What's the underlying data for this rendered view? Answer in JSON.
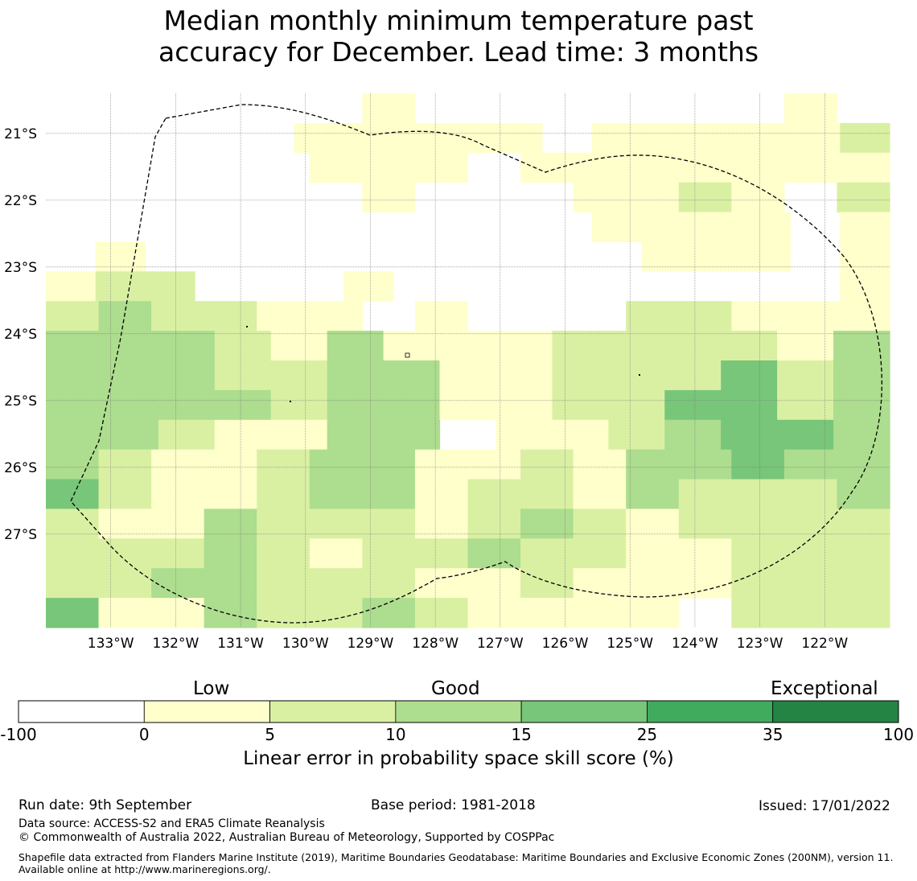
{
  "title_line1": "Median monthly minimum temperature past",
  "title_line2": "accuracy for December. Lead time: 3 months",
  "map": {
    "lon_labels": [
      "133°W",
      "132°W",
      "131°W",
      "130°W",
      "129°W",
      "128°W",
      "127°W",
      "126°W",
      "125°W",
      "124°W",
      "123°W",
      "122°W"
    ],
    "lat_labels": [
      "21°S",
      "22°S",
      "23°S",
      "24°S",
      "25°S",
      "26°S",
      "27°S"
    ],
    "lon_values": [
      -133,
      -132,
      -131,
      -130,
      -129,
      -128,
      -127,
      -126,
      -125,
      -124,
      -123,
      -122
    ],
    "lat_values": [
      -21,
      -22,
      -23,
      -24,
      -25,
      -26,
      -27
    ],
    "grid_lon_range": [
      -134.0,
      -121.0
    ],
    "grid_lat_range": [
      -20.4,
      -28.4
    ],
    "cell_size_lon": 0.833,
    "cell_size_lat": 0.556,
    "cells": [
      "WWWWWWCWWWWWWWCW",
      "WWWWWLLLLLWLLLLLK",
      "WWWWWLLLWLLLLLLL",
      "WWWWWWLWWWLLKLWK",
      "WWWWWWWWWWWLLLLWL",
      "WLWWWWWWWWWWLLLWL",
      "LKKWWWLWWWWWWWWWL",
      "KMKKLLWLWWWKKLLL",
      "MMMKLMLLLKKKKLM",
      "MMMKKMMLLKKKNKM",
      "MMMMKMMLLKKNNKM",
      "MMKLLMMWLLKMNNM",
      "MKLLKMMLLKLMMNMM",
      "NKLLKMMLKKLMKKKM",
      "KLLMKKKLKMKLKKKK",
      "KKKMKLKKMKKLLKKK",
      "KKMMKKKLLKLLLKKK",
      "NLLMKKMKLLLLWKKK"
    ]
  },
  "legend": {
    "categories": [
      "Low",
      "Good",
      "Exceptional"
    ],
    "ticks": [
      "-100",
      "0",
      "5",
      "10",
      "15",
      "25",
      "35",
      "100"
    ],
    "colors": [
      "#ffffff",
      "#ffffcc",
      "#d9f0a3",
      "#addd8e",
      "#78c679",
      "#41ab5d",
      "#238443"
    ],
    "label": "Linear error in probability space skill score (%)"
  },
  "footer": {
    "run_date": "Run date: 9th September",
    "base_period": "Base period: 1981-2018",
    "issued": "Issued: 17/01/2022",
    "data_source": "Data source: ACCESS-S2 and ERA5 Climate Reanalysis",
    "copyright": "© Commonwealth of Australia 2022, Australian Bureau of Meteorology, Supported by COSPPac",
    "shapefile": "Shapefile data extracted from Flanders Marine Institute (2019), Maritime Boundaries Geodatabase: Maritime Boundaries and Exclusive Economic Zones (200NM), version 11. Available online at http://www.marineregions.org/."
  }
}
